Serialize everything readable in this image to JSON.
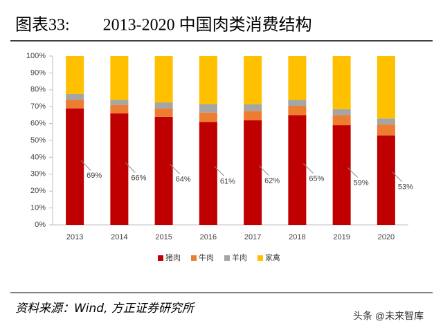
{
  "chart_data": {
    "type": "stacked_bar",
    "title": "图表33:        2013-2020 中国肉类消费结构",
    "source": "资料来源：Wind, 方正证券研究所",
    "watermark": "头条 @未来智库",
    "categories": [
      "2013",
      "2014",
      "2015",
      "2016",
      "2017",
      "2018",
      "2019",
      "2020"
    ],
    "series": [
      {
        "name": "猪肉",
        "color": "#c00000",
        "values": [
          69,
          66,
          64,
          61,
          62,
          65,
          59,
          53
        ],
        "value_labels": [
          "69%",
          "66%",
          "64%",
          "61%",
          "62%",
          "65%",
          "59%",
          "53%"
        ]
      },
      {
        "name": "牛肉",
        "color": "#ed7d31",
        "values": [
          5,
          5,
          5,
          5.5,
          5.5,
          5.5,
          6,
          6.5
        ]
      },
      {
        "name": "羊肉",
        "color": "#a5a5a5",
        "values": [
          3.5,
          3,
          3.5,
          5,
          4,
          3.5,
          3.5,
          3.5
        ]
      },
      {
        "name": "家禽",
        "color": "#ffc000",
        "values": [
          22.5,
          26,
          27.5,
          28.5,
          28.5,
          26,
          31.5,
          37
        ]
      }
    ],
    "ylim": [
      0,
      100
    ],
    "yticks": [
      {
        "value": 0,
        "label": "0%"
      },
      {
        "value": 10,
        "label": "10%"
      },
      {
        "value": 20,
        "label": "20%"
      },
      {
        "value": 30,
        "label": "30%"
      },
      {
        "value": 40,
        "label": "40%"
      },
      {
        "value": 50,
        "label": "50%"
      },
      {
        "value": 60,
        "label": "60%"
      },
      {
        "value": 70,
        "label": "70%"
      },
      {
        "value": 80,
        "label": "80%"
      },
      {
        "value": 90,
        "label": "90%"
      },
      {
        "value": 100,
        "label": "100%"
      }
    ],
    "legend": "bottom"
  }
}
